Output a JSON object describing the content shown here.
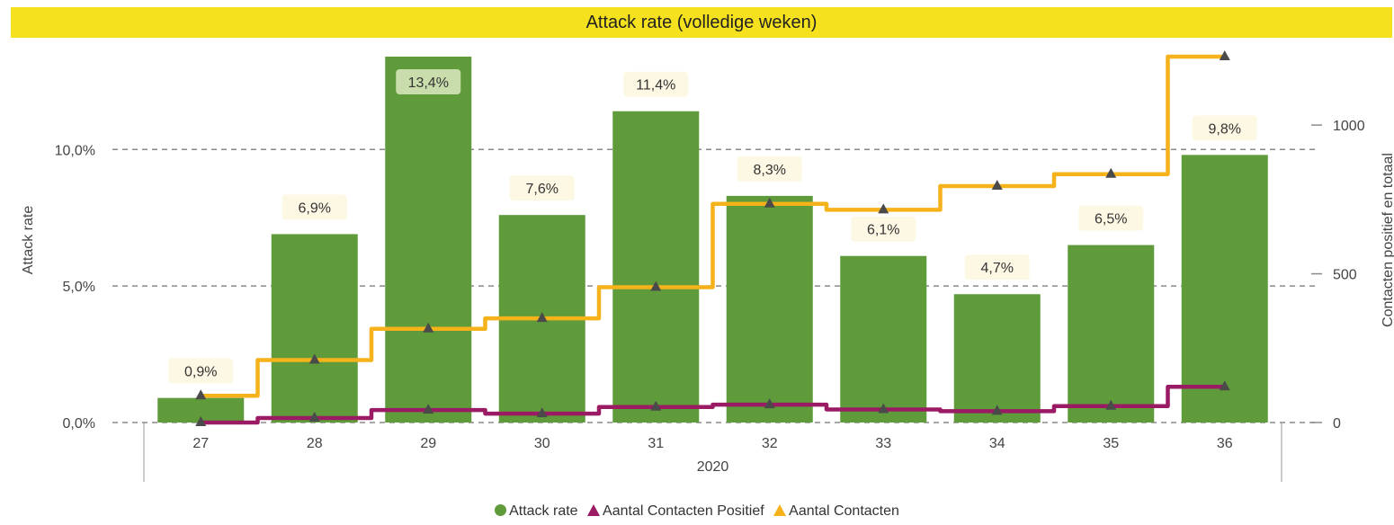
{
  "chart_data": {
    "type": "bar",
    "title": "Attack rate (volledige weken)",
    "categories": [
      "27",
      "28",
      "29",
      "30",
      "31",
      "32",
      "33",
      "34",
      "35",
      "36"
    ],
    "xgroup_label": "2020",
    "ylabel": "Attack rate",
    "y2label": "Contacten positief en totaal",
    "ylim": [
      0,
      13.4
    ],
    "y2lim": [
      0,
      1230
    ],
    "yticks": [
      "0,0%",
      "5,0%",
      "10,0%"
    ],
    "y2ticks": [
      "0",
      "500",
      "1000"
    ],
    "series": [
      {
        "name": "Attack rate",
        "kind": "bar",
        "axis": "left",
        "color": "#5f9b3a",
        "values": [
          0.9,
          6.9,
          13.4,
          7.6,
          11.4,
          8.3,
          6.1,
          4.7,
          6.5,
          9.8
        ],
        "labels": [
          "0,9%",
          "6,9%",
          "13,4%",
          "7,6%",
          "11,4%",
          "8,3%",
          "6,1%",
          "4,7%",
          "6,5%",
          "9,8%"
        ]
      },
      {
        "name": "Aantal Contacten Positief",
        "kind": "step-line",
        "axis": "right",
        "color": "#9a1a63",
        "values": [
          0,
          15,
          42,
          30,
          52,
          60,
          44,
          38,
          55,
          120
        ]
      },
      {
        "name": "Aantal Contacten",
        "kind": "step-line",
        "axis": "right",
        "color": "#f5b21b",
        "values": [
          90,
          210,
          315,
          350,
          455,
          735,
          715,
          795,
          835,
          1230
        ]
      }
    ],
    "grid": true,
    "legend": "bottom"
  }
}
